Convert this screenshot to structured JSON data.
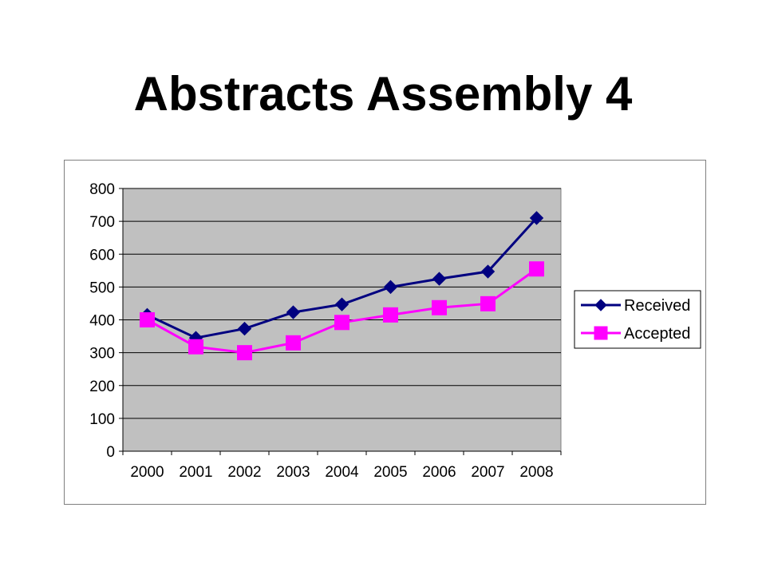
{
  "slide": {
    "title": "Abstracts Assembly 4"
  },
  "chart_data": {
    "type": "line",
    "title": "",
    "xlabel": "",
    "ylabel": "",
    "categories": [
      "2000",
      "2001",
      "2002",
      "2003",
      "2004",
      "2005",
      "2006",
      "2007",
      "2008"
    ],
    "ylim": [
      0,
      800
    ],
    "yticks": [
      0,
      100,
      200,
      300,
      400,
      500,
      600,
      700,
      800
    ],
    "grid": "horizontal",
    "plot_background": "#c0c0c0",
    "legend_position": "right",
    "series": [
      {
        "name": "Received",
        "marker": "diamond",
        "color": "#000080",
        "values": [
          415,
          345,
          373,
          423,
          447,
          500,
          525,
          547,
          710
        ]
      },
      {
        "name": "Accepted",
        "marker": "square",
        "color": "#ff00ff",
        "values": [
          400,
          318,
          300,
          330,
          392,
          415,
          437,
          449,
          555
        ]
      }
    ]
  }
}
